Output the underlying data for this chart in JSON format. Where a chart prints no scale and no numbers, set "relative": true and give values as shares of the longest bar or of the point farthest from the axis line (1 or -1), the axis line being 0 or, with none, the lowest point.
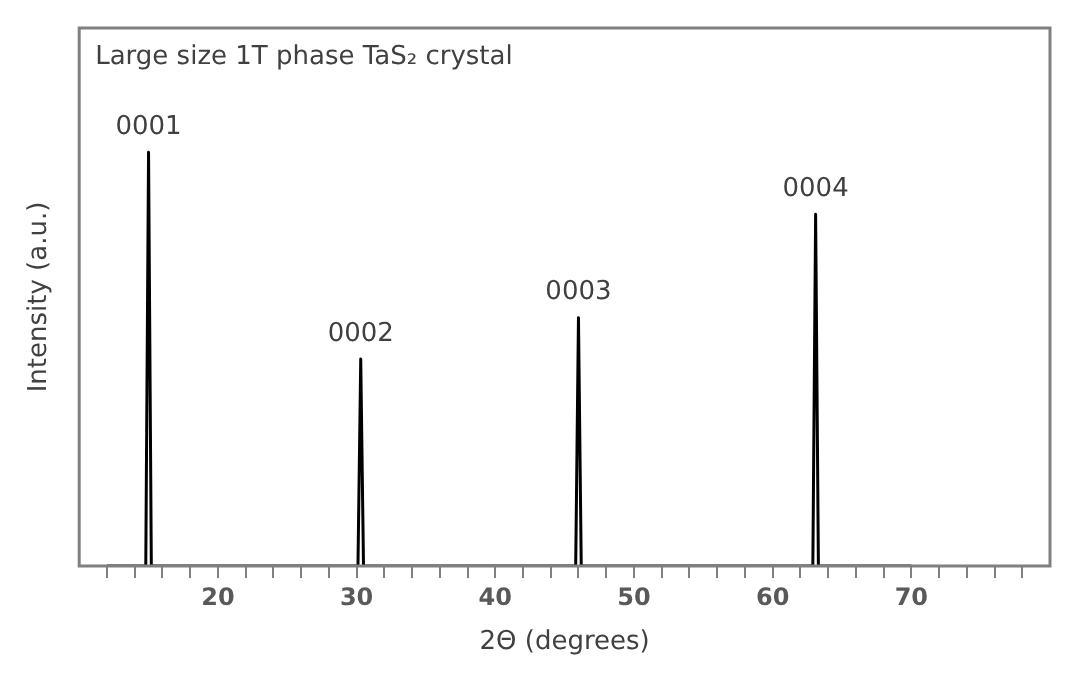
{
  "chart_data": {
    "type": "line",
    "title": "Large size 1T phase TaS₂ crystal",
    "xlabel": "2Θ (degrees)",
    "ylabel": "Intensity (a.u.)",
    "relative": true,
    "grid": false,
    "legend": false,
    "marker": "none",
    "line_style": "solid",
    "xlim": [
      10,
      80
    ],
    "xticks": [
      {
        "value": 12,
        "label": null
      },
      {
        "value": 14,
        "label": null
      },
      {
        "value": 16,
        "label": null
      },
      {
        "value": 18,
        "label": null
      },
      20,
      {
        "value": 22,
        "label": null
      },
      {
        "value": 24,
        "label": null
      },
      {
        "value": 26,
        "label": null
      },
      {
        "value": 28,
        "label": null
      },
      30,
      {
        "value": 32,
        "label": null
      },
      {
        "value": 34,
        "label": null
      },
      {
        "value": 36,
        "label": null
      },
      {
        "value": 38,
        "label": null
      },
      40,
      {
        "value": 42,
        "label": null
      },
      {
        "value": 44,
        "label": null
      },
      {
        "value": 46,
        "label": null
      },
      {
        "value": 48,
        "label": null
      },
      50,
      {
        "value": 52,
        "label": null
      },
      {
        "value": 54,
        "label": null
      },
      {
        "value": 56,
        "label": null
      },
      {
        "value": 58,
        "label": null
      },
      60,
      {
        "value": 62,
        "label": null
      },
      {
        "value": 64,
        "label": null
      },
      {
        "value": 66,
        "label": null
      },
      {
        "value": 68,
        "label": null
      },
      70,
      {
        "value": 72,
        "label": null
      },
      {
        "value": 74,
        "label": null
      },
      {
        "value": 76,
        "label": null
      },
      {
        "value": 78,
        "label": null
      }
    ],
    "series": [
      {
        "color": "#000000",
        "x": [
          12,
          14.8,
          15.0,
          15.2,
          30.1,
          30.3,
          30.5,
          45.8,
          46.0,
          46.2,
          62.9,
          63.1,
          63.3,
          70
        ],
        "values": [
          0,
          0,
          1,
          0,
          0,
          0.5,
          0,
          0,
          0.6,
          0,
          0,
          0.85,
          0,
          0
        ]
      }
    ],
    "annotations": [
      {
        "text": "0001",
        "x": 15.0,
        "y": 1
      },
      {
        "text": "0002",
        "x": 30.3,
        "y": 0.5
      },
      {
        "text": "0003",
        "x": 46.0,
        "y": 0.6
      },
      {
        "text": "0004",
        "x": 63.1,
        "y": 0.85
      }
    ]
  }
}
